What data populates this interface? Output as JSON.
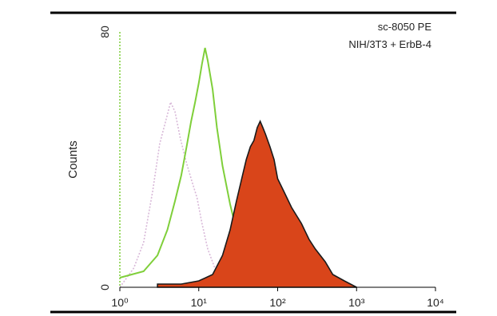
{
  "chart_data": {
    "type": "area",
    "title": "",
    "annotations": [
      "sc-8050 PE",
      "NIH/3T3 + ErbB-4"
    ],
    "xlabel": "",
    "ylabel": "Counts",
    "x_scale": "log",
    "xlim": [
      1,
      10000
    ],
    "ylim": [
      0,
      80
    ],
    "x_tick_labels": [
      "10⁰",
      "10¹",
      "10²",
      "10³",
      "10⁴"
    ],
    "y_tick_labels": [
      "0",
      "80"
    ],
    "grid": false,
    "series": [
      {
        "color": "#d8b8d8",
        "style": "dotted-outline",
        "x": [
          1.0,
          1.5,
          2.0,
          2.6,
          3.2,
          3.8,
          4.4,
          5.0,
          5.8,
          6.8,
          8.0,
          9.5,
          11,
          13,
          16,
          20,
          25,
          30
        ],
        "y": [
          0,
          6,
          14,
          30,
          45,
          52,
          58,
          55,
          47,
          40,
          34,
          28,
          20,
          12,
          6,
          3,
          1,
          0
        ]
      },
      {
        "color": "#7fcf3a",
        "style": "outline",
        "x": [
          1.0,
          2.0,
          3.0,
          4.0,
          5.0,
          6.0,
          7.0,
          8.0,
          9.0,
          10,
          11,
          12,
          13,
          15,
          17,
          20,
          25,
          32,
          40,
          50,
          60,
          80,
          100
        ],
        "y": [
          3,
          5,
          10,
          18,
          27,
          35,
          44,
          52,
          58,
          64,
          70,
          75,
          71,
          62,
          50,
          38,
          26,
          15,
          8,
          4,
          2,
          1,
          0
        ]
      },
      {
        "color": "#d9451a",
        "style": "filled",
        "x": [
          3,
          6,
          10,
          15,
          20,
          25,
          30,
          35,
          40,
          45,
          50,
          55,
          60,
          65,
          70,
          80,
          90,
          100,
          120,
          150,
          200,
          250,
          300,
          400,
          500,
          700,
          1000
        ],
        "y": [
          1,
          1,
          2,
          4,
          10,
          18,
          27,
          34,
          40,
          44,
          46,
          50,
          52,
          50,
          48,
          44,
          40,
          34,
          30,
          25,
          20,
          15,
          12,
          8,
          4,
          2,
          0
        ]
      }
    ]
  }
}
